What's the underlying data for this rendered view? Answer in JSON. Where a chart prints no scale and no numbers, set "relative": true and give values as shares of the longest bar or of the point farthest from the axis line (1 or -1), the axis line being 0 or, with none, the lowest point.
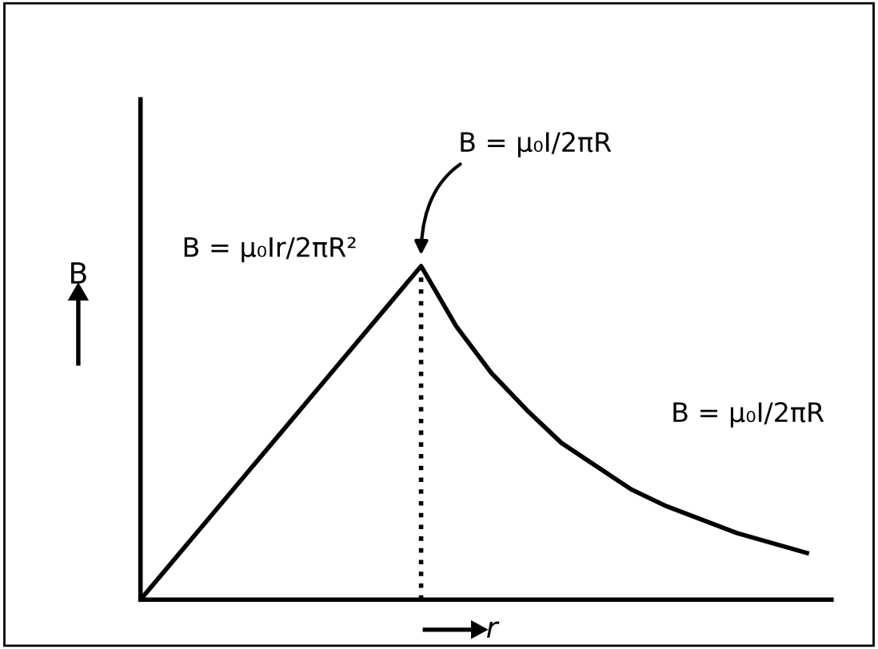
{
  "chart_data": {
    "type": "line",
    "relative": true,
    "xlabel": "r",
    "ylabel": "B",
    "categories": [
      null,
      null,
      null,
      null,
      null,
      null,
      null,
      null,
      null,
      null,
      null,
      null,
      null,
      null,
      null,
      null,
      null,
      null,
      null,
      null
    ],
    "series": [
      {
        "color": "#000000",
        "values": [
          0,
          0.125,
          0.25,
          0.375,
          0.5,
          0.625,
          0.75,
          0.875,
          1,
          0.82,
          0.68,
          0.57,
          0.47,
          0.4,
          0.33,
          0.28,
          0.24,
          0.2,
          0.17,
          0.14
        ]
      }
    ],
    "annotations": [
      "B = μ₀Ir/2πR²",
      "B = μ₀I/2πR",
      "B = μ₀I/2πR"
    ],
    "marker": "none",
    "line_style": "solid"
  }
}
